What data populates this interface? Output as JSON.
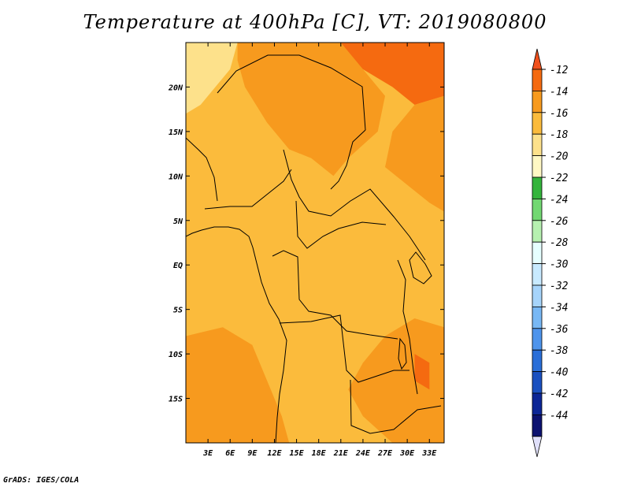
{
  "title": "Temperature at 400hPa [C], VT: 2019080800",
  "credit": "GrADS: IGES/COLA",
  "map": {
    "lon_range": [
      0,
      35
    ],
    "lat_range": [
      -20,
      25
    ],
    "lon_ticks": [
      {
        "value": 3,
        "label": "3E"
      },
      {
        "value": 6,
        "label": "6E"
      },
      {
        "value": 9,
        "label": "9E"
      },
      {
        "value": 12,
        "label": "12E"
      },
      {
        "value": 15,
        "label": "15E"
      },
      {
        "value": 18,
        "label": "18E"
      },
      {
        "value": 21,
        "label": "21E"
      },
      {
        "value": 24,
        "label": "24E"
      },
      {
        "value": 27,
        "label": "27E"
      },
      {
        "value": 30,
        "label": "30E"
      },
      {
        "value": 33,
        "label": "33E"
      }
    ],
    "lat_ticks": [
      {
        "value": 20,
        "label": "20N"
      },
      {
        "value": 15,
        "label": "15N"
      },
      {
        "value": 10,
        "label": "10N"
      },
      {
        "value": 5,
        "label": "5N"
      },
      {
        "value": 0,
        "label": "EQ"
      },
      {
        "value": -5,
        "label": "5S"
      },
      {
        "value": -10,
        "label": "10S"
      },
      {
        "value": -15,
        "label": "15S"
      }
    ],
    "base_color": "#fbbb3c",
    "regions": [
      {
        "name": "warm-northeast",
        "color": "#f56a10",
        "points": [
          [
            21,
            25
          ],
          [
            35,
            25
          ],
          [
            35,
            19
          ],
          [
            31,
            18
          ],
          [
            28,
            20
          ],
          [
            24,
            22
          ],
          [
            20,
            24
          ]
        ]
      },
      {
        "name": "warm-north-central",
        "color": "#f79a1e",
        "points": [
          [
            7,
            25
          ],
          [
            21,
            25
          ],
          [
            24,
            22
          ],
          [
            27,
            19
          ],
          [
            26,
            15
          ],
          [
            22,
            12
          ],
          [
            20,
            10
          ],
          [
            17,
            12
          ],
          [
            14,
            13
          ],
          [
            11,
            16
          ],
          [
            8,
            20
          ],
          [
            7,
            23
          ]
        ]
      },
      {
        "name": "cool-northwest",
        "color": "#fde18b",
        "points": [
          [
            0,
            25
          ],
          [
            7,
            25
          ],
          [
            6,
            22
          ],
          [
            4,
            20
          ],
          [
            2,
            18
          ],
          [
            0,
            17
          ]
        ]
      },
      {
        "name": "warm-east",
        "color": "#f79a1e",
        "points": [
          [
            35,
            19
          ],
          [
            31,
            18
          ],
          [
            28,
            15
          ],
          [
            27,
            11
          ],
          [
            30,
            9
          ],
          [
            33,
            7
          ],
          [
            35,
            6
          ]
        ]
      },
      {
        "name": "warm-southeast",
        "color": "#f79a1e",
        "points": [
          [
            35,
            -7
          ],
          [
            31,
            -6
          ],
          [
            27,
            -8
          ],
          [
            24,
            -11
          ],
          [
            22,
            -14
          ],
          [
            24,
            -17
          ],
          [
            28,
            -20
          ],
          [
            35,
            -20
          ]
        ]
      },
      {
        "name": "warm-southwest",
        "color": "#f79a1e",
        "points": [
          [
            0,
            -8
          ],
          [
            5,
            -7
          ],
          [
            9,
            -9
          ],
          [
            11,
            -13
          ],
          [
            13,
            -17
          ],
          [
            14,
            -20
          ],
          [
            0,
            -20
          ]
        ]
      },
      {
        "name": "hot-lakes",
        "color": "#f56a10",
        "points": [
          [
            31,
            -10
          ],
          [
            33,
            -11
          ],
          [
            33,
            -14
          ],
          [
            31,
            -13
          ]
        ]
      }
    ]
  },
  "colorbar": {
    "levels": [
      "-12",
      "-14",
      "-16",
      "-18",
      "-20",
      "-22",
      "-24",
      "-26",
      "-28",
      "-30",
      "-32",
      "-34",
      "-36",
      "-38",
      "-40",
      "-42",
      "-44"
    ],
    "colors": [
      "#f0501c",
      "#f56a10",
      "#f79a1e",
      "#fbbb3c",
      "#fde18b",
      "#fff8c4",
      "#34b43c",
      "#72d872",
      "#b6f0b0",
      "#e6ffff",
      "#c8eaff",
      "#a6d4fb",
      "#78b8f5",
      "#4e94ec",
      "#2a6ed8",
      "#1a50c0",
      "#0c2696",
      "#0c1270",
      "#e0e0fa"
    ]
  }
}
